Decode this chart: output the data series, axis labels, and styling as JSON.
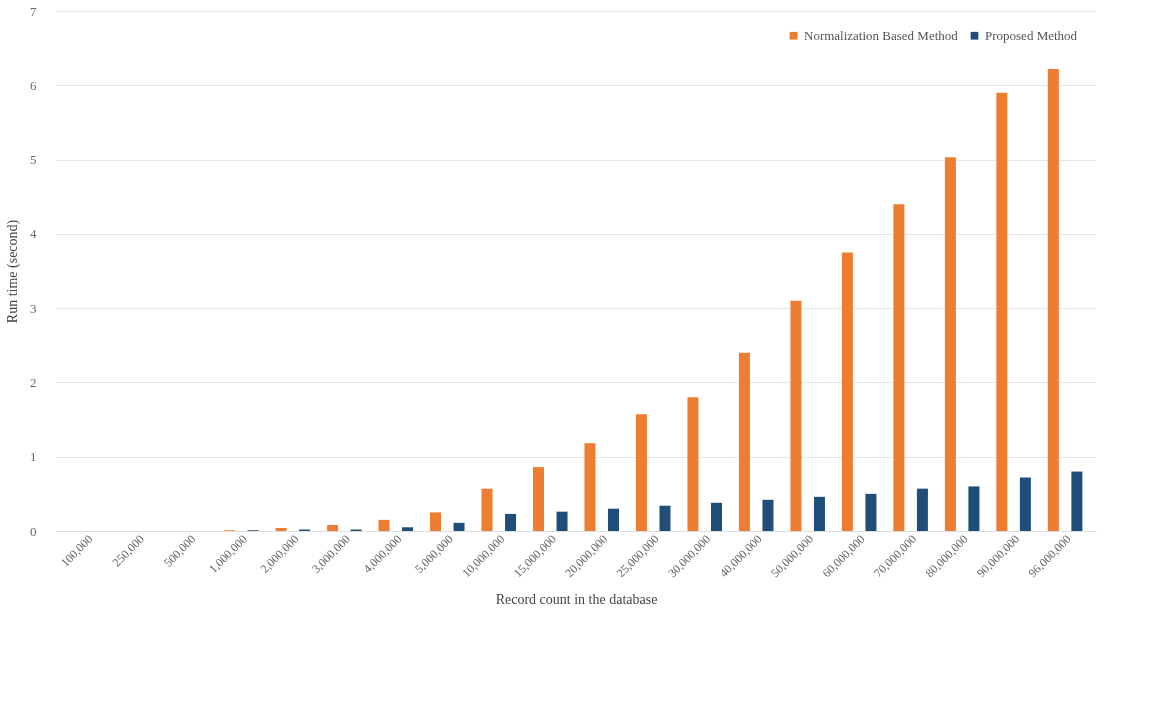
{
  "chart_data": {
    "type": "bar",
    "xlabel": "Record count in the database",
    "ylabel": "Run time (second)",
    "categories": [
      "100,000",
      "250,000",
      "500,000",
      "1,000,000",
      "2,000,000",
      "3,000,000",
      "4,000,000",
      "5,000,000",
      "10,000,000",
      "15,000,000",
      "20,000,000",
      "25,000,000",
      "30,000,000",
      "40,000,000",
      "50,000,000",
      "60,000,000",
      "70,000,000",
      "80,000,000",
      "90,000,000",
      "96,000,000"
    ],
    "series": [
      {
        "name": "Normalization Based Method",
        "color": "#ed7d31",
        "values": [
          0,
          0,
          0,
          0.01,
          0.04,
          0.08,
          0.15,
          0.25,
          0.57,
          0.86,
          1.18,
          1.57,
          1.8,
          2.4,
          3.1,
          3.75,
          4.4,
          5.03,
          5.9,
          6.22
        ]
      },
      {
        "name": "Proposed Method",
        "color": "#1f4e79",
        "values": [
          0,
          0,
          0,
          0.01,
          0.02,
          0.02,
          0.05,
          0.11,
          0.23,
          0.26,
          0.3,
          0.34,
          0.38,
          0.42,
          0.46,
          0.5,
          0.57,
          0.6,
          0.72,
          0.8
        ]
      }
    ],
    "ylim": [
      0,
      7
    ],
    "yticks": [
      0,
      1,
      2,
      3,
      4,
      5,
      6,
      7
    ],
    "grid": "y",
    "legend": "top right"
  }
}
